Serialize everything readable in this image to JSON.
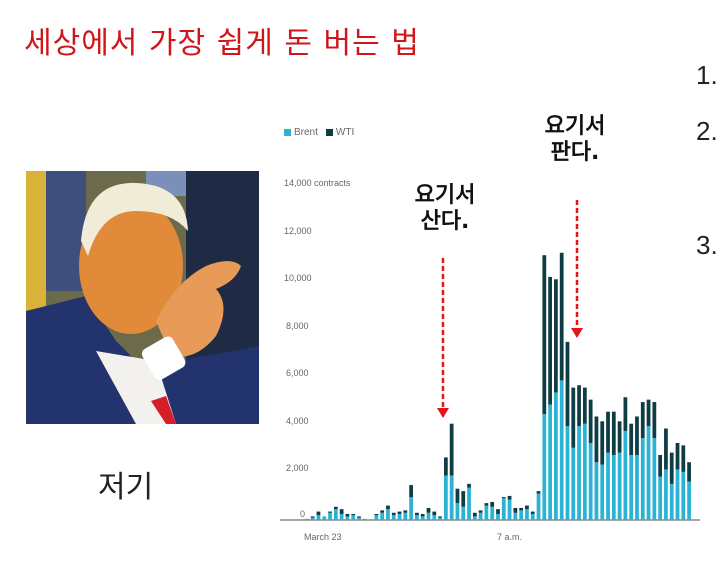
{
  "slide": {
    "title": "세상에서 가장 쉽게 돈 버는 법",
    "list_numbers": [
      "1.",
      "2.",
      "3."
    ],
    "photo_caption": "저기",
    "photo_alt": "man-pointing-photo"
  },
  "annotations": {
    "buy": {
      "line1": "요기서",
      "line2": "산다."
    },
    "sell": {
      "line1": "요기서",
      "line2": "판다."
    },
    "arrow_color": "#e0161b"
  },
  "chart_data": {
    "type": "bar",
    "stacked": true,
    "title": "",
    "xlabel": "",
    "ylabel": "contracts",
    "ylim": [
      0,
      14000
    ],
    "y_ticks": [
      "0",
      "2,000",
      "4,000",
      "6,000",
      "8,000",
      "10,000",
      "12,000",
      "14,000 contracts"
    ],
    "x_tick_labels": [
      {
        "label": "March 23",
        "index": 0
      },
      {
        "label": "7 a.m.",
        "index": 33
      }
    ],
    "legend": [
      {
        "name": "Brent",
        "color": "#2bb3d6"
      },
      {
        "name": "WTI",
        "color": "#0f3d44"
      }
    ],
    "series": [
      {
        "name": "Brent",
        "values": [
          50,
          100,
          200,
          150,
          300,
          450,
          250,
          150,
          200,
          100,
          50,
          0,
          200,
          300,
          450,
          200,
          250,
          300,
          950,
          200,
          150,
          300,
          200,
          100,
          1850,
          1850,
          700,
          550,
          1350,
          150,
          300,
          600,
          550,
          250,
          900,
          850,
          300,
          400,
          450,
          250,
          1100,
          4400,
          4800,
          5300,
          5800,
          3900,
          3000,
          3900,
          4000,
          3200,
          2400,
          2300,
          2800,
          2700,
          2800,
          3700,
          2700,
          2700,
          3400,
          3900,
          3400,
          1800,
          2100,
          1500,
          2100,
          2000,
          1600
        ]
      },
      {
        "name": "WTI",
        "values": [
          0,
          50,
          150,
          0,
          50,
          100,
          200,
          100,
          50,
          50,
          0,
          0,
          50,
          100,
          150,
          100,
          100,
          100,
          500,
          100,
          100,
          200,
          150,
          50,
          750,
          2150,
          600,
          650,
          150,
          150,
          100,
          100,
          200,
          200,
          50,
          150,
          200,
          100,
          150,
          100,
          100,
          6600,
          5300,
          4700,
          5300,
          3500,
          2500,
          1700,
          1500,
          1800,
          1900,
          1800,
          1700,
          1800,
          1300,
          1400,
          1300,
          1600,
          1500,
          1100,
          1500,
          900,
          1700,
          1300,
          1100,
          1100,
          800
        ]
      }
    ]
  }
}
